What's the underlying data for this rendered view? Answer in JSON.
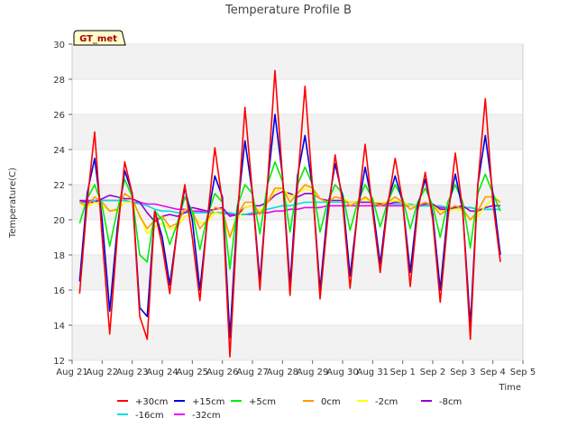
{
  "chart_data": {
    "type": "line",
    "title": "Temperature Profile B",
    "xlabel": "Time",
    "ylabel": "Temperature(C)",
    "badge": "GT_met",
    "xlim": [
      0,
      15
    ],
    "ylim": [
      12,
      30
    ],
    "x_ticks": [
      {
        "v": 0,
        "label": "Aug 21"
      },
      {
        "v": 1,
        "label": "Aug 22"
      },
      {
        "v": 2,
        "label": "Aug 23"
      },
      {
        "v": 3,
        "label": "Aug 24"
      },
      {
        "v": 4,
        "label": "Aug 25"
      },
      {
        "v": 5,
        "label": "Aug 26"
      },
      {
        "v": 6,
        "label": "Aug 27"
      },
      {
        "v": 7,
        "label": "Aug 28"
      },
      {
        "v": 8,
        "label": "Aug 29"
      },
      {
        "v": 9,
        "label": "Aug 30"
      },
      {
        "v": 10,
        "label": "Aug 31"
      },
      {
        "v": 11,
        "label": "Sep 1"
      },
      {
        "v": 12,
        "label": "Sep 2"
      },
      {
        "v": 13,
        "label": "Sep 3"
      },
      {
        "v": 14,
        "label": "Sep 4"
      },
      {
        "v": 15,
        "label": "Sep 5"
      }
    ],
    "y_ticks": [
      12,
      14,
      16,
      18,
      20,
      22,
      24,
      26,
      28,
      30
    ],
    "grid": "horizontal bands",
    "legend_position": "bottom",
    "x_start": 0.25,
    "x_step": 0.25,
    "series": [
      {
        "name": "+30cm",
        "color": "#ff0000",
        "values": [
          15.8,
          21.0,
          25.0,
          19.0,
          13.5,
          19.0,
          23.3,
          21.5,
          14.5,
          13.2,
          20.5,
          18.5,
          15.8,
          19.5,
          22.0,
          19.0,
          15.4,
          20.0,
          24.1,
          21.0,
          12.2,
          20.0,
          26.4,
          21.5,
          16.0,
          22.0,
          28.5,
          22.5,
          15.7,
          22.0,
          27.6,
          21.8,
          15.5,
          20.0,
          23.7,
          21.0,
          16.1,
          20.5,
          24.3,
          20.5,
          17.0,
          20.8,
          23.5,
          21.0,
          16.2,
          20.5,
          22.7,
          20.0,
          15.3,
          20.0,
          23.8,
          20.5,
          13.2,
          22.0,
          26.9,
          21.0,
          17.6
        ]
      },
      {
        "name": "+15cm",
        "color": "#0000dd",
        "values": [
          16.5,
          21.5,
          23.5,
          20.0,
          14.8,
          19.5,
          22.8,
          21.5,
          15.0,
          14.5,
          20.5,
          19.0,
          16.3,
          19.5,
          21.8,
          20.0,
          16.0,
          20.0,
          22.5,
          21.3,
          13.3,
          20.5,
          24.5,
          21.5,
          16.5,
          22.0,
          26.0,
          22.5,
          16.3,
          22.5,
          24.8,
          21.8,
          16.0,
          20.5,
          23.2,
          21.3,
          16.8,
          20.5,
          23.0,
          20.8,
          17.5,
          21.0,
          22.5,
          21.0,
          17.0,
          20.8,
          22.3,
          20.3,
          16.0,
          20.5,
          22.6,
          20.5,
          14.0,
          22.0,
          24.8,
          21.5,
          18.0
        ]
      },
      {
        "name": "+5cm",
        "color": "#00ee00",
        "values": [
          19.8,
          21.2,
          22.0,
          20.8,
          18.5,
          20.5,
          22.3,
          21.3,
          18.0,
          17.6,
          20.5,
          20.0,
          18.6,
          19.8,
          21.3,
          20.5,
          18.3,
          20.2,
          21.5,
          21.0,
          17.2,
          20.8,
          22.0,
          21.5,
          19.2,
          22.0,
          23.3,
          22.2,
          19.3,
          22.0,
          23.0,
          22.0,
          19.3,
          21.0,
          22.0,
          21.5,
          19.4,
          21.0,
          22.0,
          21.2,
          19.6,
          21.0,
          22.0,
          21.2,
          19.5,
          21.0,
          21.8,
          20.8,
          19.0,
          21.0,
          22.0,
          21.0,
          18.4,
          21.5,
          22.6,
          21.5,
          20.5
        ]
      },
      {
        "name": "0cm",
        "color": "#ff9900",
        "values": [
          21.0,
          20.8,
          21.3,
          21.0,
          20.5,
          20.6,
          21.5,
          21.2,
          20.2,
          19.5,
          20.0,
          20.2,
          19.6,
          19.8,
          20.6,
          20.5,
          19.5,
          20.0,
          20.7,
          20.6,
          19.0,
          20.3,
          21.0,
          21.0,
          20.3,
          21.0,
          21.8,
          21.8,
          21.0,
          21.5,
          22.0,
          21.8,
          21.2,
          21.0,
          21.3,
          21.2,
          20.8,
          21.0,
          21.3,
          21.0,
          20.8,
          21.0,
          21.3,
          21.0,
          20.6,
          20.8,
          21.0,
          20.8,
          20.3,
          20.6,
          20.8,
          20.6,
          20.0,
          20.5,
          21.3,
          21.3,
          21.0
        ]
      },
      {
        "name": "-2cm",
        "color": "#ffff00",
        "values": [
          20.9,
          20.7,
          21.0,
          20.8,
          20.5,
          20.5,
          21.0,
          21.0,
          20.3,
          19.2,
          19.6,
          19.8,
          19.5,
          19.6,
          20.2,
          20.3,
          19.8,
          19.9,
          20.4,
          20.3,
          19.0,
          20.0,
          20.7,
          20.8,
          20.5,
          21.0,
          21.6,
          21.8,
          21.3,
          21.5,
          21.8,
          21.6,
          21.2,
          21.0,
          21.3,
          21.2,
          21.0,
          21.0,
          21.2,
          21.0,
          21.0,
          21.0,
          21.1,
          21.0,
          20.8,
          20.8,
          21.0,
          20.8,
          20.5,
          20.5,
          20.6,
          20.5,
          20.0,
          20.2,
          20.8,
          21.2,
          21.1
        ]
      },
      {
        "name": "-8cm",
        "color": "#9900cc",
        "values": [
          21.1,
          21.0,
          21.0,
          21.2,
          21.4,
          21.3,
          21.2,
          21.2,
          21.0,
          20.4,
          19.9,
          20.2,
          20.3,
          20.2,
          20.4,
          20.7,
          20.6,
          20.5,
          20.6,
          20.7,
          20.2,
          20.3,
          20.7,
          20.8,
          20.8,
          21.0,
          21.4,
          21.6,
          21.5,
          21.3,
          21.5,
          21.5,
          21.2,
          21.1,
          21.1,
          21.1,
          21.0,
          21.0,
          21.0,
          21.0,
          20.9,
          20.9,
          21.0,
          21.0,
          20.8,
          20.8,
          20.9,
          20.9,
          20.6,
          20.6,
          20.7,
          20.8,
          20.5,
          20.5,
          20.7,
          20.8,
          20.8
        ]
      },
      {
        "name": "-16cm",
        "color": "#00dddd",
        "values": [
          21.0,
          21.0,
          21.1,
          21.1,
          21.1,
          21.1,
          21.1,
          21.0,
          20.9,
          20.8,
          20.6,
          20.5,
          20.5,
          20.4,
          20.4,
          20.4,
          20.4,
          20.4,
          20.4,
          20.4,
          20.4,
          20.3,
          20.3,
          20.4,
          20.5,
          20.6,
          20.7,
          20.8,
          20.8,
          20.9,
          21.0,
          21.0,
          21.0,
          21.0,
          21.0,
          21.0,
          21.0,
          21.0,
          21.0,
          21.0,
          20.9,
          20.9,
          20.9,
          20.9,
          20.9,
          20.8,
          20.8,
          20.8,
          20.8,
          20.7,
          20.7,
          20.7,
          20.7,
          20.6,
          20.6,
          20.6,
          20.6
        ]
      },
      {
        "name": "-32cm",
        "color": "#ee00ee",
        "values": [
          21.1,
          21.1,
          21.1,
          21.1,
          21.1,
          21.1,
          21.1,
          21.0,
          21.0,
          20.9,
          20.9,
          20.8,
          20.7,
          20.6,
          20.6,
          20.5,
          20.5,
          20.4,
          20.4,
          20.4,
          20.3,
          20.3,
          20.3,
          20.3,
          20.4,
          20.4,
          20.5,
          20.5,
          20.6,
          20.6,
          20.7,
          20.7,
          20.7,
          20.8,
          20.8,
          20.8,
          20.8,
          20.8,
          20.8,
          20.8,
          20.8,
          20.8,
          20.8,
          20.8,
          20.8,
          20.8,
          20.8,
          20.8,
          20.7,
          20.7,
          20.7,
          20.7,
          20.7,
          20.6,
          20.6,
          20.6,
          20.6
        ]
      }
    ]
  }
}
